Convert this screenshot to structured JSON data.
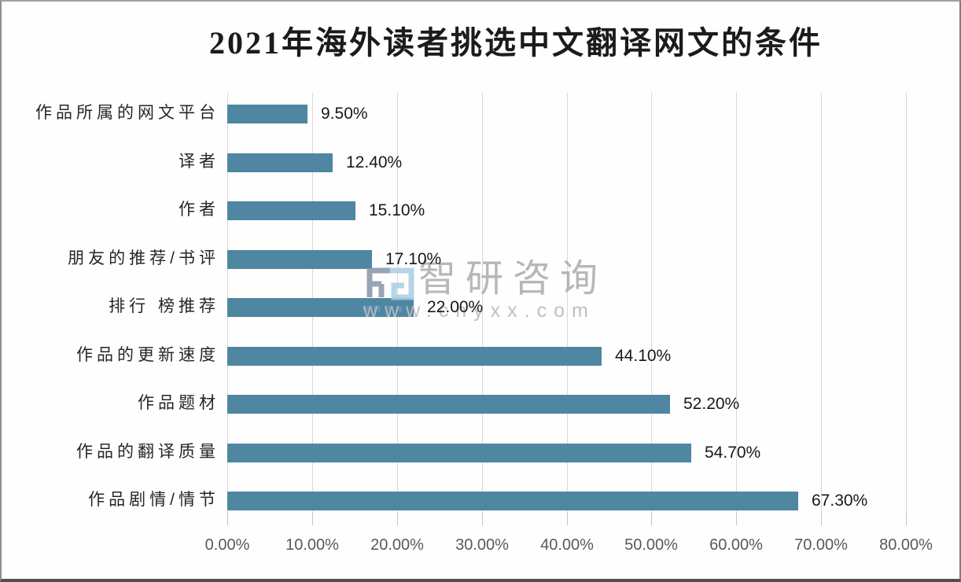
{
  "chart_data": {
    "type": "bar",
    "orientation": "horizontal",
    "title": "2021年海外读者挑选中文翻译网文的条件",
    "categories": [
      "作品所属的网文平台",
      "译者",
      "作者",
      "朋友的推荐/书评",
      "排行 榜推荐",
      "作品的更新速度",
      "作品题材",
      "作品的翻译质量",
      "作品剧情/情节"
    ],
    "values": [
      9.5,
      12.4,
      15.1,
      17.1,
      22.0,
      44.1,
      52.2,
      54.7,
      67.3
    ],
    "value_labels": [
      "9.50%",
      "12.40%",
      "15.10%",
      "17.10%",
      "22.00%",
      "44.10%",
      "52.20%",
      "54.70%",
      "67.30%"
    ],
    "x_tick_labels": [
      "0.00%",
      "10.00%",
      "20.00%",
      "30.00%",
      "40.00%",
      "50.00%",
      "60.00%",
      "70.00%",
      "80.00%"
    ],
    "xlim": [
      0,
      80
    ],
    "grid": true,
    "legend": "none",
    "bar_color": "#4f86a2",
    "gridline_color": "#d9d9d9",
    "axis_label_color": "#595959"
  },
  "watermark": {
    "brand": "智研咨询",
    "url": "www.chyxx.com",
    "logo_caption": "智研咨询",
    "logo_color_dark": "#8495aa",
    "logo_color_light": "#a9cde2"
  }
}
